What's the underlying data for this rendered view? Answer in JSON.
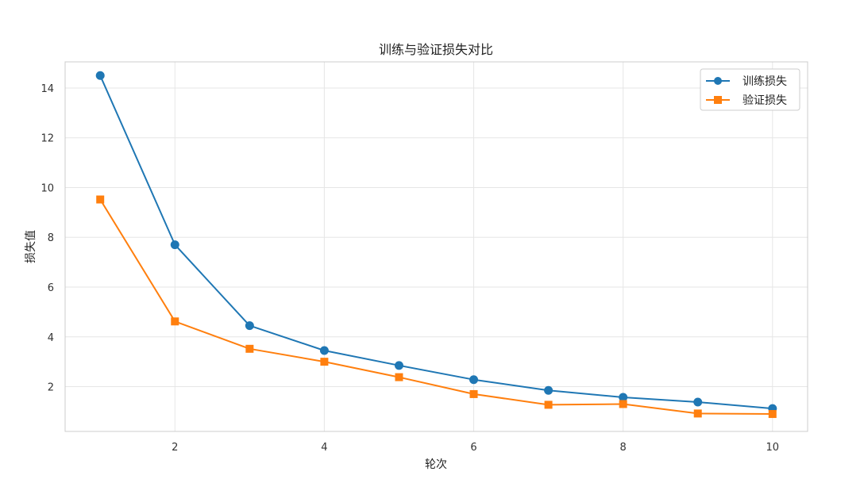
{
  "chart_data": {
    "type": "line",
    "title": "训练与验证损失对比",
    "xlabel": "轮次",
    "ylabel": "损失值",
    "xlim": [
      0.53,
      10.47
    ],
    "ylim": [
      0.2,
      15.05
    ],
    "xticks": [
      2,
      4,
      6,
      8,
      10
    ],
    "yticks": [
      2,
      4,
      6,
      8,
      10,
      12,
      14
    ],
    "grid": true,
    "legend_position": "top-right",
    "x": [
      1,
      2,
      3,
      4,
      5,
      6,
      7,
      8,
      9,
      10
    ],
    "series": [
      {
        "name": "训练损失",
        "marker": "circle",
        "color": "#1f77b4",
        "values": [
          14.5,
          7.7,
          4.45,
          3.45,
          2.85,
          2.28,
          1.85,
          1.57,
          1.38,
          1.12
        ]
      },
      {
        "name": "验证损失",
        "marker": "square",
        "color": "#ff7f0e",
        "values": [
          9.52,
          4.62,
          3.52,
          3.0,
          2.38,
          1.7,
          1.27,
          1.3,
          0.92,
          0.9
        ]
      }
    ]
  }
}
